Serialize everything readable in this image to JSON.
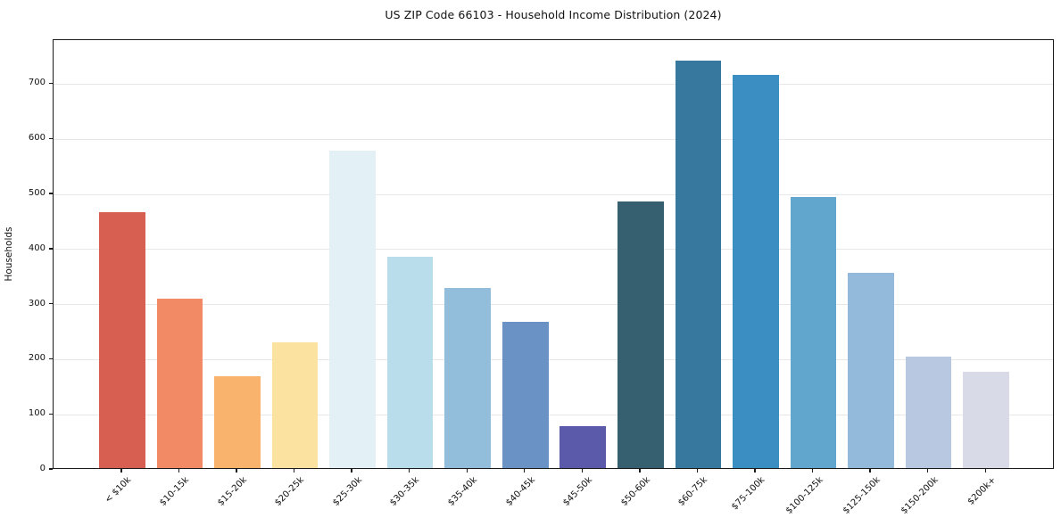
{
  "chart_data": {
    "type": "bar",
    "title": "US ZIP Code 66103 - Household Income Distribution (2024)",
    "xlabel": "",
    "ylabel": "Households",
    "ylim": [
      0,
      780
    ],
    "yticks": [
      0,
      100,
      200,
      300,
      400,
      500,
      600,
      700
    ],
    "grid": "horizontal",
    "legend": "none",
    "categories": [
      "< $10k",
      "$10-15k",
      "$15-20k",
      "$20-25k",
      "$25-30k",
      "$30-35k",
      "$35-40k",
      "$40-45k",
      "$45-50k",
      "$50-60k",
      "$60-75k",
      "$75-100k",
      "$100-125k",
      "$125-150k",
      "$150-200k",
      "$200k+"
    ],
    "values": [
      464,
      308,
      166,
      229,
      576,
      383,
      327,
      266,
      76,
      484,
      740,
      713,
      492,
      355,
      203,
      174
    ],
    "bar_colors": [
      "#d65f51",
      "#f28a65",
      "#f9b36c",
      "#fce2a0",
      "#e3f0f5",
      "#baddeb",
      "#92bedc",
      "#6b92c5",
      "#5b59a9",
      "#366070",
      "#37789f",
      "#3a8ec1",
      "#61a7cd",
      "#93badb",
      "#b8c8e0",
      "#d8dae8"
    ],
    "colors": {
      "background": "#ffffff",
      "spine": "#1a1a1a",
      "grid": "#e7e7e9",
      "text": "#111111"
    }
  }
}
